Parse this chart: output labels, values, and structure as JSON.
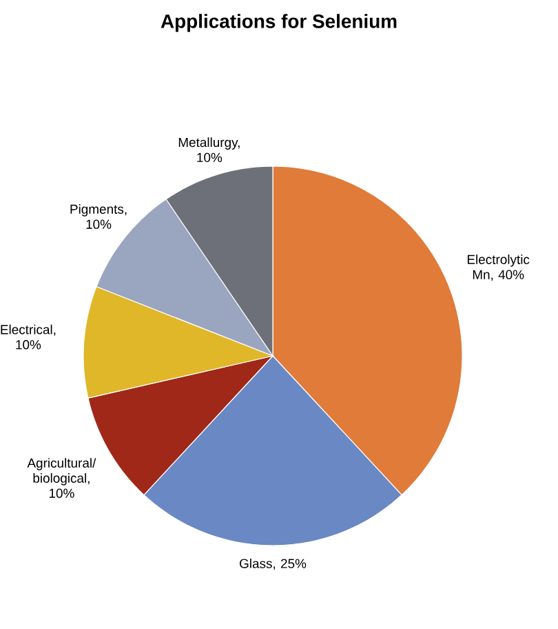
{
  "chart_data": {
    "type": "pie",
    "title": "Applications for Selenium",
    "categories": [
      "Electrolytic Mn, 40%",
      "Glass, 25%",
      "Agricultural/biological, 10%",
      "Electrical, 10%",
      "Pigments, 10%",
      "Metallurgy, 10%"
    ],
    "values": [
      40,
      25,
      10,
      10,
      10,
      10
    ],
    "colors": [
      "#e07b39",
      "#6a88c4",
      "#a02818",
      "#dfb728",
      "#9aa5c0",
      "#6e7079"
    ]
  }
}
